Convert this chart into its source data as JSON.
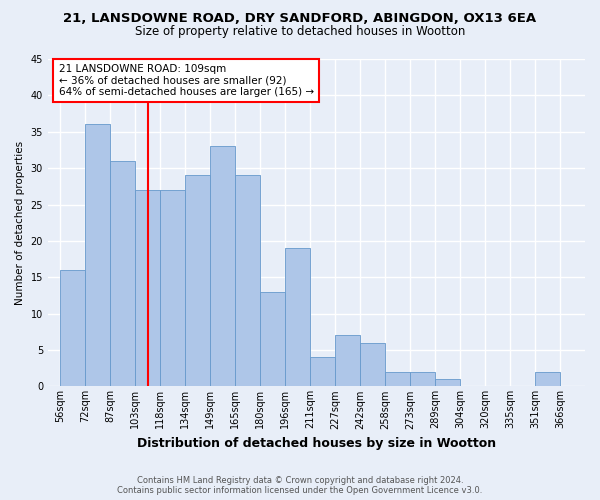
{
  "title_line1": "21, LANSDOWNE ROAD, DRY SANDFORD, ABINGDON, OX13 6EA",
  "title_line2": "Size of property relative to detached houses in Wootton",
  "xlabel": "Distribution of detached houses by size in Wootton",
  "ylabel": "Number of detached properties",
  "footer_line1": "Contains HM Land Registry data © Crown copyright and database right 2024.",
  "footer_line2": "Contains public sector information licensed under the Open Government Licence v3.0.",
  "categories": [
    "56sqm",
    "72sqm",
    "87sqm",
    "103sqm",
    "118sqm",
    "134sqm",
    "149sqm",
    "165sqm",
    "180sqm",
    "196sqm",
    "211sqm",
    "227sqm",
    "242sqm",
    "258sqm",
    "273sqm",
    "289sqm",
    "304sqm",
    "320sqm",
    "335sqm",
    "351sqm",
    "366sqm"
  ],
  "values": [
    16,
    36,
    31,
    27,
    27,
    29,
    33,
    29,
    13,
    19,
    4,
    7,
    6,
    2,
    2,
    1,
    0,
    0,
    0,
    2,
    0
  ],
  "bar_color": "#aec6e8",
  "bar_edge_color": "#6699cc",
  "property_line_label": "21 LANSDOWNE ROAD: 109sqm",
  "annotation_line2": "← 36% of detached houses are smaller (92)",
  "annotation_line3": "64% of semi-detached houses are larger (165) →",
  "annotation_box_color": "white",
  "annotation_box_edge_color": "red",
  "vline_color": "red",
  "vline_x_index": 3.5,
  "ylim": [
    0,
    45
  ],
  "yticks": [
    0,
    5,
    10,
    15,
    20,
    25,
    30,
    35,
    40,
    45
  ],
  "background_color": "#e8eef8",
  "grid_color": "white",
  "title_fontsize": 9.5,
  "subtitle_fontsize": 8.5,
  "xlabel_fontsize": 9,
  "ylabel_fontsize": 7.5,
  "tick_fontsize": 7,
  "annotation_fontsize": 7.5,
  "footer_fontsize": 6
}
